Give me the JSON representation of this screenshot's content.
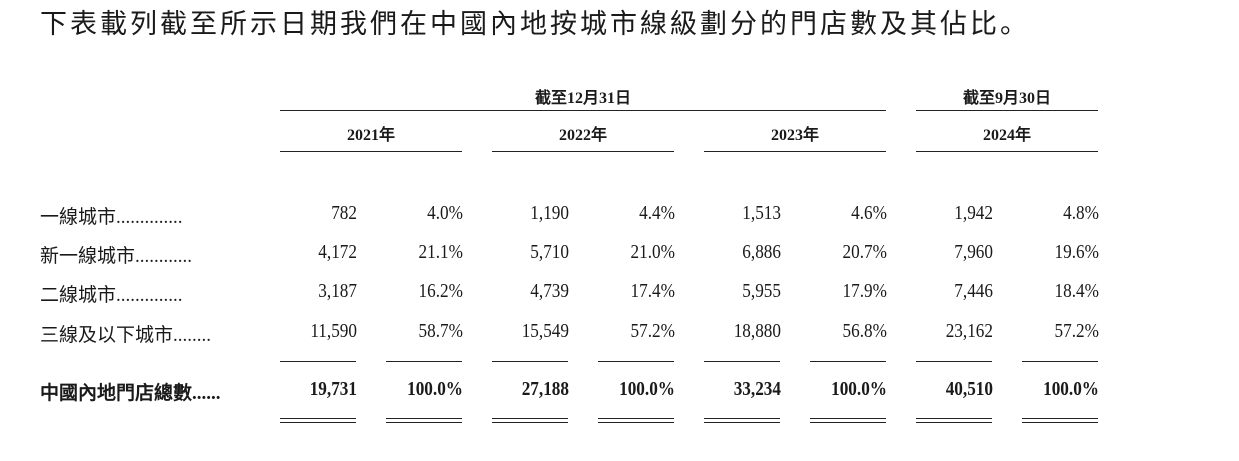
{
  "intro_text": "下表載列截至所示日期我們在中國內地按城市線級劃分的門店數及其佔比。",
  "header": {
    "group_dec": "截至12月31日",
    "group_sep": "截至9月30日",
    "years": [
      "2021年",
      "2022年",
      "2023年",
      "2024年"
    ]
  },
  "rows": [
    {
      "label": "一線城市..............",
      "cells": [
        "782",
        "4.0%",
        "1,190",
        "4.4%",
        "1,513",
        "4.6%",
        "1,942",
        "4.8%"
      ]
    },
    {
      "label": "新一線城市............",
      "cells": [
        "4,172",
        "21.1%",
        "5,710",
        "21.0%",
        "6,886",
        "20.7%",
        "7,960",
        "19.6%"
      ]
    },
    {
      "label": "二線城市..............",
      "cells": [
        "3,187",
        "16.2%",
        "4,739",
        "17.4%",
        "5,955",
        "17.9%",
        "7,446",
        "18.4%"
      ]
    },
    {
      "label": "三線及以下城市........",
      "cells": [
        "11,590",
        "58.7%",
        "15,549",
        "57.2%",
        "18,880",
        "56.8%",
        "23,162",
        "57.2%"
      ]
    }
  ],
  "total": {
    "label": "中國內地門店總數......",
    "cells": [
      "19,731",
      "100.0%",
      "27,188",
      "100.0%",
      "33,234",
      "100.0%",
      "40,510",
      "100.0%"
    ]
  }
}
